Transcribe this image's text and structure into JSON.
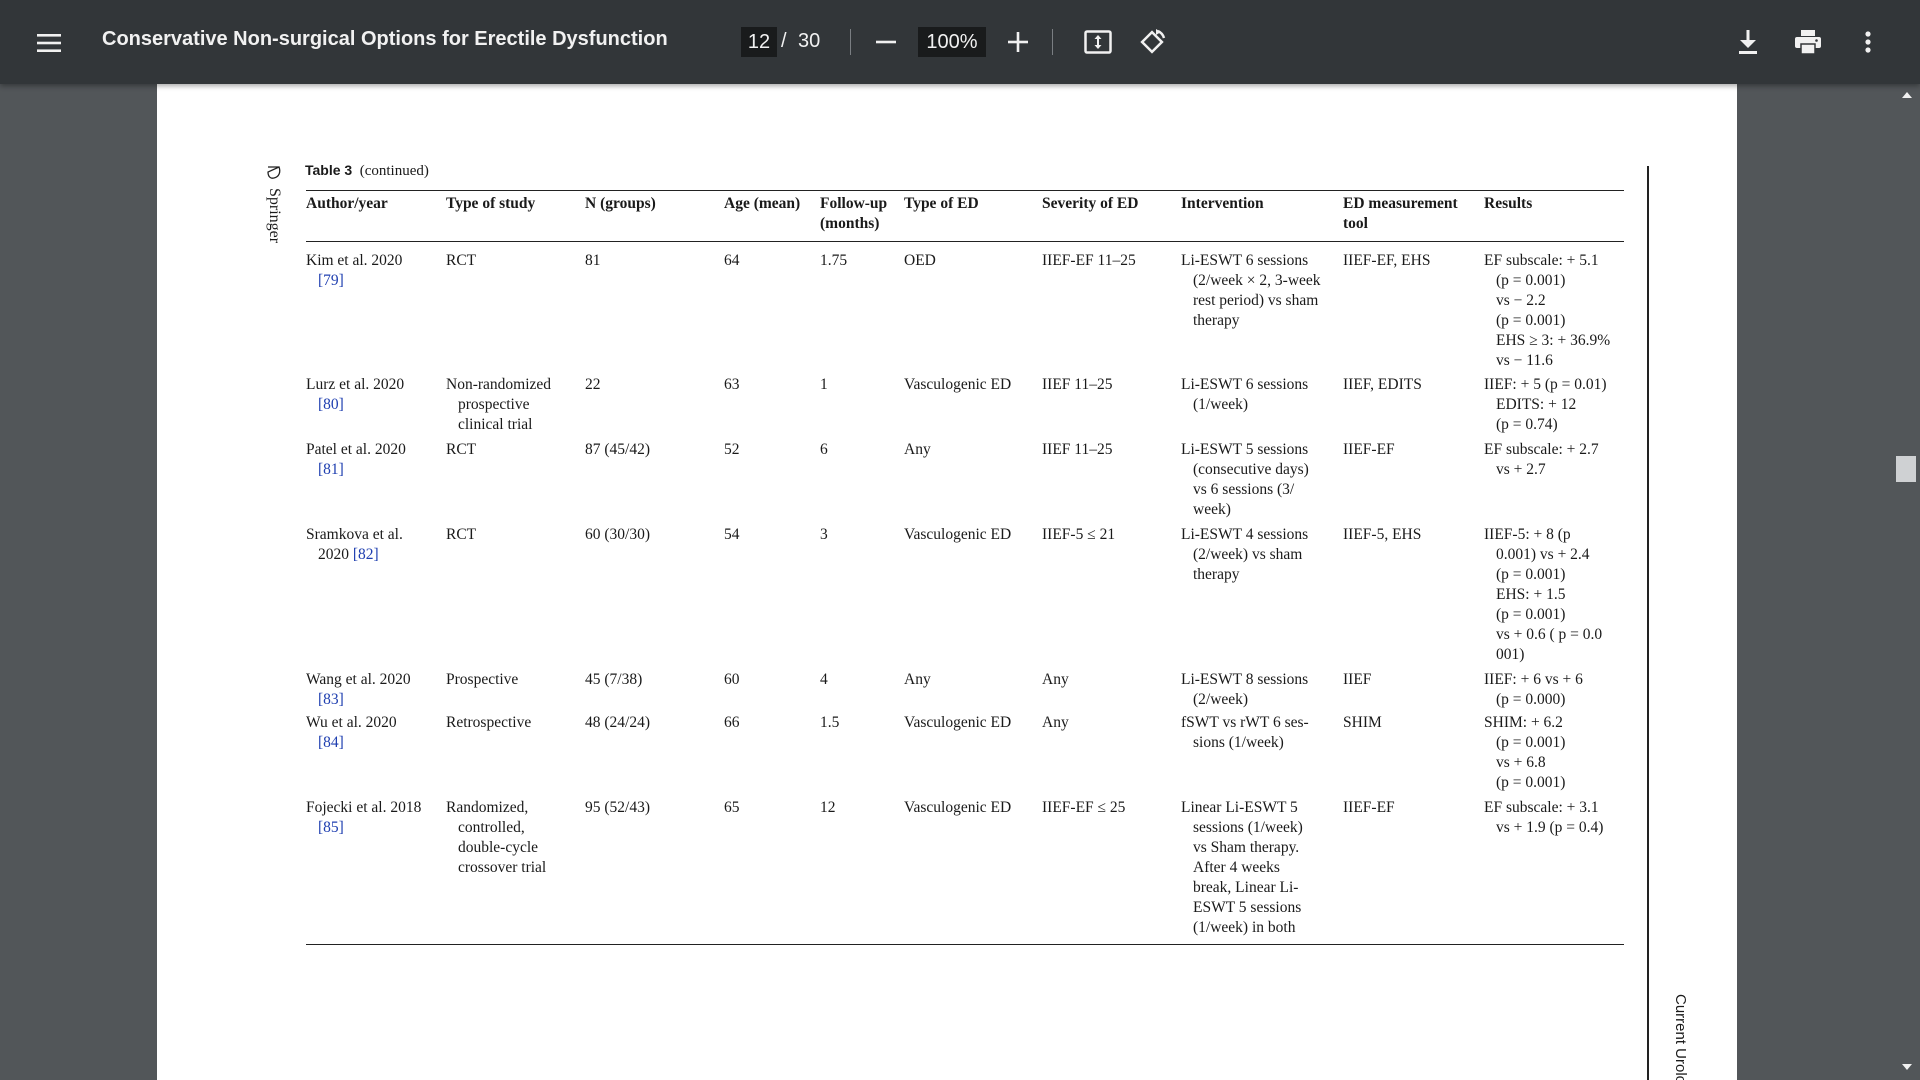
{
  "toolbar": {
    "title": "Conservative Non-surgical Options for Erectile Dysfunction",
    "page_current": "12",
    "page_separator": "/",
    "page_total": "30",
    "zoom": "100%",
    "icons": [
      "menu-icon",
      "zoom-out-icon",
      "zoom-in-icon",
      "fit-page-icon",
      "rotate-icon",
      "download-icon",
      "print-icon",
      "more-vert-icon"
    ]
  },
  "page": {
    "publisher": "Springer",
    "journal": "Current Urolo",
    "caption_label": "Table 3",
    "caption_text": "(continued)",
    "headers": {
      "author": "Author/year",
      "type": "Type of study",
      "n": "N (groups)",
      "age": "Age (mean)",
      "follow1": "Follow-up",
      "follow2": "(months)",
      "ed_type": "Type of ED",
      "severity": "Severity of ED",
      "intervention": "Intervention",
      "tool1": "ED measurement",
      "tool2": "tool",
      "results": "Results"
    },
    "rows": [
      {
        "author": [
          "Kim et al. 2020",
          "[79]"
        ],
        "type": [
          "RCT"
        ],
        "n": "81",
        "age": "64",
        "follow": "1.75",
        "ed_type": [
          "OED"
        ],
        "severity": "IIEF-EF 11–25",
        "intervention": [
          "Li-ESWT 6 sessions",
          "(2/week × 2, 3-week",
          "rest period) vs sham",
          "therapy"
        ],
        "tool": "IIEF-EF, EHS",
        "results": [
          "EF subscale: + 5.1",
          "(p = 0.001)",
          "vs − 2.2",
          "(p = 0.001)",
          "EHS ≥ 3: + 36.9%",
          "vs − 11.6"
        ]
      },
      {
        "author": [
          "Lurz et al. 2020",
          "[80]"
        ],
        "type": [
          "Non-randomized",
          "prospective",
          "clinical trial"
        ],
        "n": "22",
        "age": "63",
        "follow": "1",
        "ed_type": [
          "Vasculogenic ED"
        ],
        "severity": "IIEF 11–25",
        "intervention": [
          "Li-ESWT 6 sessions",
          "(1/week)"
        ],
        "tool": "IIEF, EDITS",
        "results": [
          "IIEF: + 5 (p = 0.01)",
          "EDITS: + 12",
          "(p = 0.74)"
        ]
      },
      {
        "author": [
          "Patel et al. 2020",
          "[81]"
        ],
        "type": [
          "RCT"
        ],
        "n": "87 (45/42)",
        "age": "52",
        "follow": "6",
        "ed_type": [
          "Any"
        ],
        "severity": "IIEF 11–25",
        "intervention": [
          "Li-ESWT 5 sessions",
          "(consecutive days)",
          "vs 6 sessions (3/",
          "week)"
        ],
        "tool": "IIEF-EF",
        "results": [
          "EF subscale: + 2.7",
          "vs + 2.7"
        ]
      },
      {
        "author": [
          "Sramkova et al.",
          "2020 [82]"
        ],
        "type": [
          "RCT"
        ],
        "n": "60 (30/30)",
        "age": "54",
        "follow": "3",
        "ed_type": [
          "Vasculogenic ED"
        ],
        "severity": "IIEF-5 ≤ 21",
        "intervention": [
          "Li-ESWT 4 sessions",
          "(2/week) vs sham",
          "therapy"
        ],
        "tool": "IIEF-5, EHS",
        "results": [
          "IIEF-5: + 8 (p",
          "0.001) vs + 2.4",
          "(p = 0.001)",
          "EHS: + 1.5",
          "(p = 0.001)",
          "vs + 0.6 ( p = 0.0",
          "001)"
        ]
      },
      {
        "author": [
          "Wang et al. 2020",
          "[83]"
        ],
        "type": [
          "Prospective"
        ],
        "n": "45 (7/38)",
        "age": "60",
        "follow": "4",
        "ed_type": [
          "Any"
        ],
        "severity": "Any",
        "intervention": [
          "Li-ESWT 8 sessions",
          "(2/week)"
        ],
        "tool": "IIEF",
        "results": [
          "IIEF: + 6 vs + 6",
          "(p = 0.000)"
        ]
      },
      {
        "author": [
          "Wu et al. 2020",
          "[84]"
        ],
        "type": [
          "Retrospective"
        ],
        "n": "48 (24/24)",
        "age": "66",
        "follow": "1.5",
        "ed_type": [
          "Vasculogenic ED"
        ],
        "severity": "Any",
        "intervention": [
          "fSWT vs rWT 6 ses-",
          "sions (1/week)"
        ],
        "tool": "SHIM",
        "results": [
          "SHIM: + 6.2",
          "(p = 0.001)",
          "vs + 6.8",
          "(p = 0.001)"
        ]
      },
      {
        "author": [
          "Fojecki et al. 2018",
          "[85]"
        ],
        "type": [
          "Randomized,",
          "controlled,",
          "double-cycle",
          "crossover trial"
        ],
        "n": "95 (52/43)",
        "age": "65",
        "follow": "12",
        "ed_type": [
          "Vasculogenic ED"
        ],
        "severity": "IIEF-EF ≤ 25",
        "intervention": [
          "Linear Li-ESWT 5",
          "sessions (1/week)",
          "vs Sham therapy.",
          "After 4 weeks",
          "break, Linear Li-",
          "ESWT 5 sessions",
          "(1/week) in both"
        ],
        "tool": "IIEF-EF",
        "results": [
          "EF subscale: + 3.1",
          "vs + 1.9 (p = 0.4)"
        ]
      }
    ]
  }
}
